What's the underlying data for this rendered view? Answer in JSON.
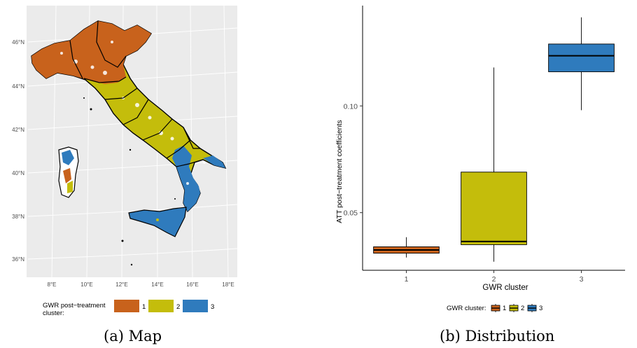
{
  "panels": {
    "map": {
      "caption": "(a) Map",
      "lat_ticks": [
        "46°N",
        "44°N",
        "42°N",
        "40°N",
        "38°N",
        "36°N"
      ],
      "lon_ticks": [
        "8°E",
        "10°E",
        "12°E",
        "14°E",
        "16°E",
        "18°E"
      ],
      "legend": {
        "title_line1": "GWR post−treatment",
        "title_line2": "cluster:",
        "items": [
          {
            "label": "1",
            "color": "#c8621c"
          },
          {
            "label": "2",
            "color": "#c4bd0b"
          },
          {
            "label": "3",
            "color": "#2f7bbd"
          }
        ]
      },
      "panel_background": "#ebebeb"
    },
    "distribution": {
      "caption": "(b) Distribution",
      "legend": {
        "title": "GWR cluster:",
        "items": [
          {
            "label": "1",
            "color": "#c8621c"
          },
          {
            "label": "2",
            "color": "#c4bd0b"
          },
          {
            "label": "3",
            "color": "#2f7bbd"
          }
        ]
      }
    }
  },
  "chart_data": {
    "type": "box",
    "xlabel": "GWR cluster",
    "ylabel": "ATT post−treatment coefficients",
    "categories": [
      "1",
      "2",
      "3"
    ],
    "y_ticks": [
      0.05,
      0.1
    ],
    "y_tick_labels": [
      "0.05",
      "0.10"
    ],
    "ylim": [
      0.023,
      0.147
    ],
    "boxes": [
      {
        "category": "1",
        "min": 0.029,
        "q1": 0.031,
        "median": 0.0325,
        "q3": 0.034,
        "max": 0.0385,
        "color": "#c8621c"
      },
      {
        "category": "2",
        "min": 0.027,
        "q1": 0.035,
        "median": 0.0365,
        "q3": 0.069,
        "max": 0.118,
        "color": "#c4bd0b"
      },
      {
        "category": "3",
        "min": 0.098,
        "q1": 0.116,
        "median": 0.1235,
        "q3": 0.129,
        "max": 0.1415,
        "color": "#2f7bbd"
      }
    ],
    "legend_position": "bottom",
    "grid": false
  }
}
